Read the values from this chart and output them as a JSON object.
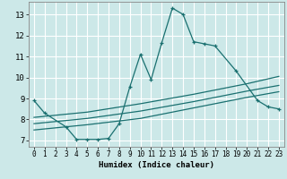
{
  "xlabel": "Humidex (Indice chaleur)",
  "xlim": [
    -0.5,
    23.5
  ],
  "ylim": [
    6.7,
    13.6
  ],
  "yticks": [
    7,
    8,
    9,
    10,
    11,
    12,
    13
  ],
  "xticks": [
    0,
    1,
    2,
    3,
    4,
    5,
    6,
    7,
    8,
    9,
    10,
    11,
    12,
    13,
    14,
    15,
    16,
    17,
    18,
    19,
    20,
    21,
    22,
    23
  ],
  "background_color": "#cce8e8",
  "grid_color": "#ffffff",
  "line_color": "#1a7070",
  "line1_x": [
    0,
    1,
    3,
    4,
    5,
    6,
    7,
    8,
    9,
    10,
    11,
    12,
    13,
    14,
    15,
    16,
    17,
    19,
    21,
    22,
    23
  ],
  "line1_y": [
    8.9,
    8.3,
    7.65,
    7.05,
    7.05,
    7.05,
    7.1,
    7.8,
    9.55,
    11.1,
    9.9,
    11.65,
    13.3,
    13.0,
    11.7,
    11.6,
    11.5,
    10.3,
    8.9,
    8.6,
    8.5
  ],
  "line2_x": [
    0,
    5,
    10,
    15,
    20,
    23
  ],
  "line2_y": [
    8.1,
    8.35,
    8.75,
    9.2,
    9.7,
    10.05
  ],
  "line3_x": [
    0,
    5,
    10,
    15,
    20,
    23
  ],
  "line3_y": [
    7.8,
    8.05,
    8.4,
    8.85,
    9.35,
    9.62
  ],
  "line4_x": [
    0,
    5,
    10,
    15,
    20,
    23
  ],
  "line4_y": [
    7.5,
    7.75,
    8.05,
    8.55,
    9.05,
    9.32
  ]
}
